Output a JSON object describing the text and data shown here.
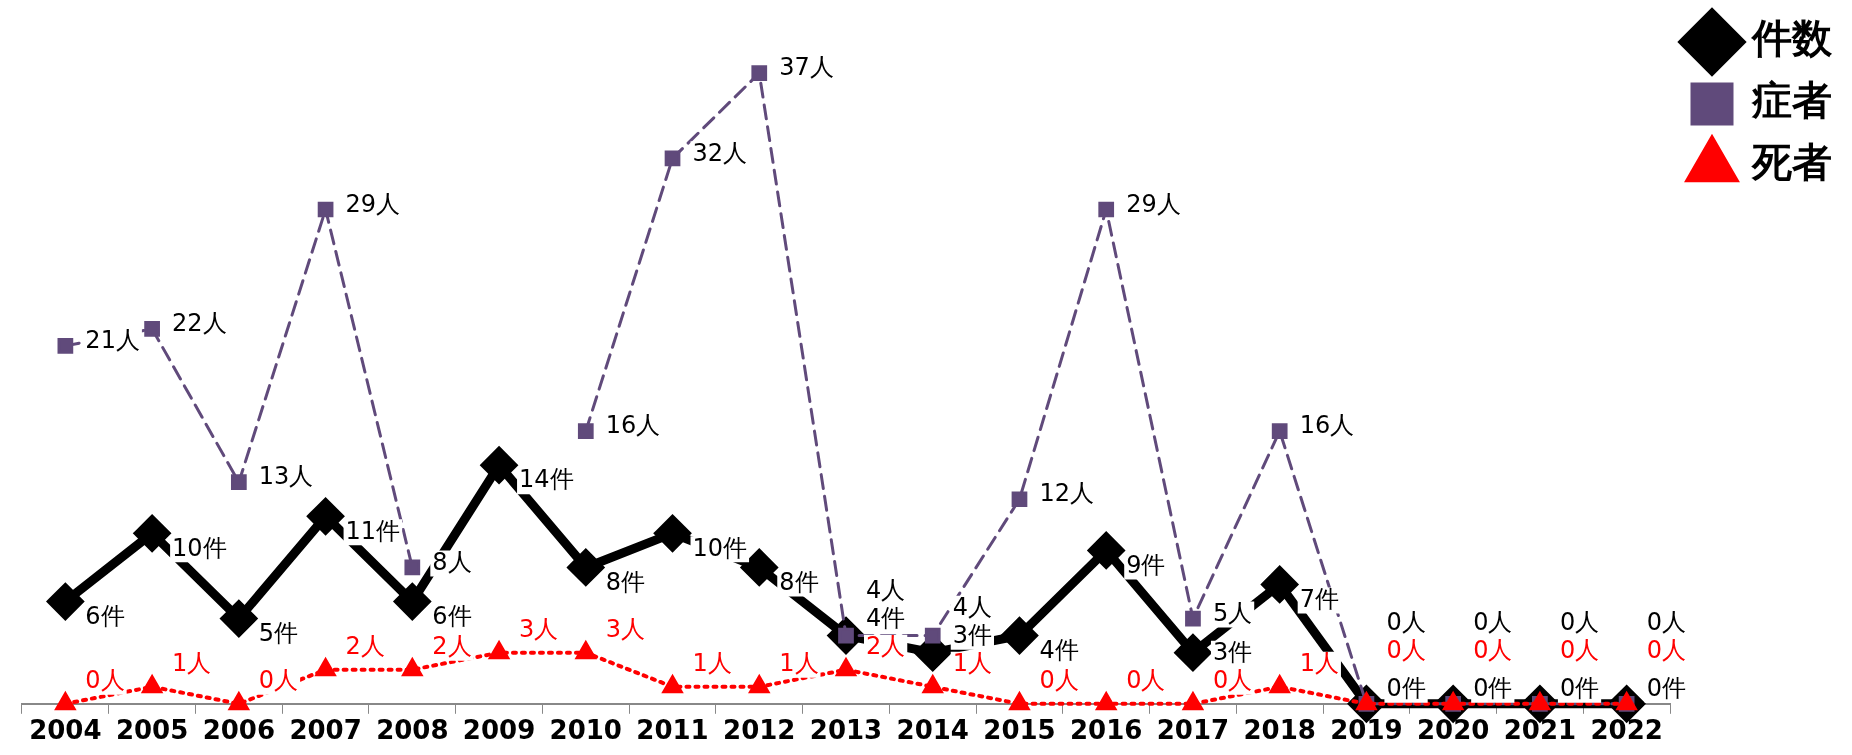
{
  "chart_data": {
    "type": "line",
    "categories": [
      "2004",
      "2005",
      "2006",
      "2007",
      "2008",
      "2009",
      "2010",
      "2011",
      "2012",
      "2013",
      "2014",
      "2015",
      "2016",
      "2017",
      "2018",
      "2019",
      "2020",
      "2021",
      "2022"
    ],
    "tick_labels": "x",
    "grid": false,
    "legend": "top right",
    "series": [
      {
        "name": "件数",
        "color": "#000000",
        "marker": "diamond",
        "line_style": "solid",
        "values": [
          6,
          10,
          5,
          11,
          6,
          14,
          8,
          10,
          8,
          4,
          3,
          4,
          9,
          3,
          7,
          0,
          0,
          0,
          0
        ],
        "value_labels": [
          "6件",
          "10件",
          "5件",
          "11件",
          "6件",
          "14件",
          "8件",
          "10件",
          "8件",
          "4件",
          "3件",
          "4件",
          "9件",
          "3件",
          "7件",
          "0件",
          "0件",
          "0件",
          "0件"
        ]
      },
      {
        "name": "症者",
        "color": "#604a7b",
        "marker": "square",
        "line_style": "dashed",
        "values": [
          21,
          22,
          13,
          29,
          8,
          null,
          16,
          32,
          37,
          4,
          4,
          12,
          29,
          5,
          16,
          0,
          0,
          0,
          0
        ],
        "value_labels": [
          "21人",
          "22人",
          "13人",
          "29人",
          "8人",
          null,
          "16人",
          "32人",
          "37人",
          "4人",
          "4人",
          "12人",
          "29人",
          "5人",
          "16人",
          "0人",
          "0人",
          "0人",
          "0人"
        ]
      },
      {
        "name": "死者",
        "color": "#ff0000",
        "marker": "triangle",
        "line_style": "dotted",
        "values": [
          0,
          1,
          0,
          2,
          2,
          3,
          3,
          1,
          1,
          2,
          1,
          0,
          0,
          0,
          1,
          0,
          0,
          0,
          0
        ],
        "value_labels": [
          "0人",
          "1人",
          "0人",
          "2人",
          "2人",
          "3人",
          "3人",
          "1人",
          "1人",
          "2人",
          "1人",
          "0人",
          "0人",
          "0人",
          "1人",
          "0人",
          "0人",
          "0人",
          "0人"
        ]
      }
    ]
  }
}
